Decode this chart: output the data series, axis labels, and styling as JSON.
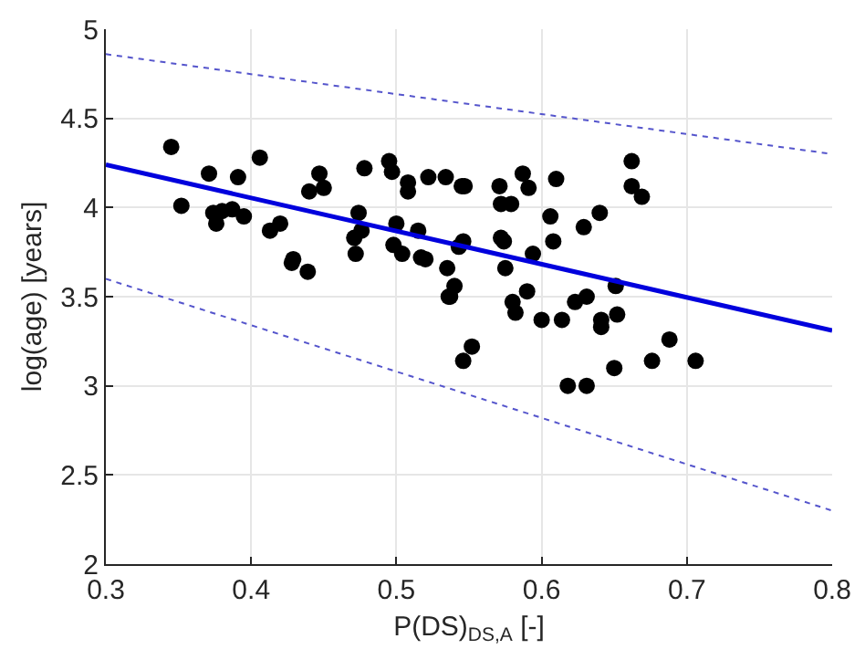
{
  "chart_data": {
    "type": "scatter",
    "xlabel": "P(DS)$_{DS,A}$ [-]",
    "ylabel": "log(age) [years]",
    "xlim": [
      0.3,
      0.8
    ],
    "xticks": [
      0.3,
      0.4,
      0.5,
      0.6,
      0.7,
      0.8
    ],
    "ylim": [
      2,
      5
    ],
    "yticks": [
      2,
      2.5,
      3,
      3.5,
      4,
      4.5,
      5
    ],
    "grid": true,
    "series": [
      {
        "color": "#000000",
        "marker": "circle",
        "x": [
          0.345,
          0.352,
          0.371,
          0.374,
          0.376,
          0.38,
          0.387,
          0.391,
          0.395,
          0.406,
          0.413,
          0.42,
          0.428,
          0.429,
          0.439,
          0.44,
          0.447,
          0.45,
          0.471,
          0.472,
          0.474,
          0.476,
          0.478,
          0.495,
          0.497,
          0.498,
          0.5,
          0.504,
          0.508,
          0.508,
          0.515,
          0.517,
          0.52,
          0.522,
          0.534,
          0.535,
          0.536,
          0.537,
          0.54,
          0.543,
          0.546,
          0.545,
          0.547,
          0.546,
          0.552,
          0.572,
          0.571,
          0.572,
          0.574,
          0.575,
          0.579,
          0.58,
          0.582,
          0.587,
          0.59,
          0.591,
          0.594,
          0.6,
          0.606,
          0.608,
          0.61,
          0.614,
          0.618,
          0.623,
          0.629,
          0.631,
          0.631,
          0.64,
          0.641,
          0.641,
          0.65,
          0.651,
          0.652,
          0.662,
          0.662,
          0.669,
          0.676,
          0.688,
          0.706
        ],
        "values": [
          4.34,
          4.01,
          4.19,
          3.97,
          3.91,
          3.98,
          3.99,
          4.17,
          3.95,
          4.28,
          3.87,
          3.91,
          3.69,
          3.71,
          3.64,
          4.09,
          4.19,
          4.11,
          3.83,
          3.74,
          3.97,
          3.87,
          4.22,
          4.26,
          4.2,
          3.79,
          3.91,
          3.74,
          4.14,
          4.09,
          3.87,
          3.72,
          3.71,
          4.17,
          4.17,
          3.66,
          3.5,
          3.5,
          3.56,
          3.78,
          3.81,
          4.12,
          4.12,
          3.14,
          3.22,
          3.83,
          4.12,
          4.02,
          3.81,
          3.66,
          4.02,
          3.47,
          3.41,
          4.19,
          3.53,
          4.11,
          3.74,
          3.37,
          3.95,
          3.81,
          4.16,
          3.37,
          3.0,
          3.47,
          3.89,
          3.5,
          3.0,
          3.97,
          3.37,
          3.33,
          3.1,
          3.56,
          3.4,
          4.26,
          4.12,
          4.06,
          3.14,
          3.26,
          3.14
        ]
      },
      {
        "type": "line",
        "color": "#0000dd",
        "line_style": "solid",
        "x": [
          0.3,
          0.8
        ],
        "values": [
          4.24,
          3.31
        ]
      },
      {
        "type": "line",
        "color": "#5555cc",
        "line_style": "dotted",
        "x": [
          0.3,
          0.8
        ],
        "values": [
          4.86,
          4.3
        ]
      },
      {
        "type": "line",
        "color": "#5555cc",
        "line_style": "dotted",
        "x": [
          0.3,
          0.8
        ],
        "values": [
          3.6,
          2.3
        ]
      }
    ]
  }
}
